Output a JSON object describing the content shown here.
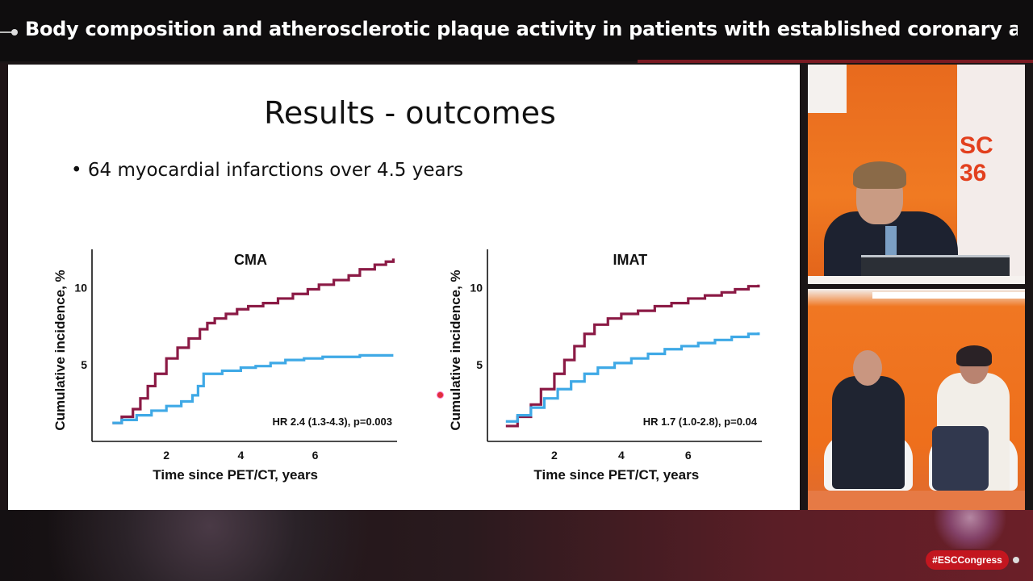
{
  "header": {
    "title": "Body composition and atherosclerotic plaque activity in patients with established coronary artery ..."
  },
  "slide": {
    "title": "Results - outcomes",
    "bullet": "• 64 myocardial infarctions over 4.5 years"
  },
  "camera_top": {
    "background_text": "SC 36"
  },
  "badge": {
    "label": "#ESCCongress"
  },
  "colors": {
    "high_group": "#8b1a45",
    "low_group": "#3fa9e6",
    "brand_red": "#c3161f",
    "stage_orange": "#f07a22"
  },
  "chart_data": [
    {
      "type": "line",
      "title": "CMA",
      "xlabel": "Time since PET/CT, years",
      "ylabel": "Cumulative incidence, %",
      "xlim": [
        0,
        8.2
      ],
      "ylim": [
        0,
        12.5
      ],
      "xticks": [
        2,
        4,
        6
      ],
      "yticks": [
        5,
        10
      ],
      "annotation": "HR 2.4 (1.3-4.3), p=0.003",
      "grid": false,
      "series": [
        {
          "color": "#8b1a45",
          "x": [
            0.55,
            0.8,
            1.1,
            1.3,
            1.5,
            1.7,
            2.0,
            2.3,
            2.6,
            2.9,
            3.1,
            3.3,
            3.6,
            3.9,
            4.2,
            4.6,
            5.0,
            5.4,
            5.8,
            6.1,
            6.5,
            6.9,
            7.2,
            7.6,
            7.9,
            8.1
          ],
          "y": [
            1.2,
            1.6,
            2.1,
            2.8,
            3.6,
            4.4,
            5.4,
            6.1,
            6.7,
            7.3,
            7.7,
            8.0,
            8.3,
            8.6,
            8.8,
            9.0,
            9.3,
            9.6,
            9.9,
            10.2,
            10.5,
            10.8,
            11.2,
            11.5,
            11.7,
            11.9
          ]
        },
        {
          "color": "#3fa9e6",
          "x": [
            0.55,
            0.8,
            1.2,
            1.6,
            2.0,
            2.4,
            2.7,
            2.85,
            3.0,
            3.5,
            4.0,
            4.4,
            4.8,
            5.2,
            5.7,
            6.2,
            6.7,
            7.2,
            7.7,
            8.1
          ],
          "y": [
            1.2,
            1.4,
            1.7,
            2.0,
            2.3,
            2.6,
            3.0,
            3.6,
            4.4,
            4.6,
            4.8,
            4.9,
            5.1,
            5.3,
            5.4,
            5.5,
            5.5,
            5.6,
            5.6,
            5.6
          ]
        }
      ]
    },
    {
      "type": "line",
      "title": "IMAT",
      "xlabel": "Time since PET/CT, years",
      "ylabel": "Cumulative incidence, %",
      "xlim": [
        0,
        8.2
      ],
      "ylim": [
        0,
        12.5
      ],
      "xticks": [
        2,
        4,
        6
      ],
      "yticks": [
        5,
        10
      ],
      "annotation": "HR 1.7 (1.0-2.8), p=0.04",
      "grid": false,
      "series": [
        {
          "color": "#8b1a45",
          "x": [
            0.55,
            0.9,
            1.3,
            1.6,
            2.0,
            2.3,
            2.6,
            2.9,
            3.2,
            3.6,
            4.0,
            4.5,
            5.0,
            5.5,
            6.0,
            6.5,
            7.0,
            7.4,
            7.8,
            8.1
          ],
          "y": [
            1.0,
            1.6,
            2.4,
            3.4,
            4.4,
            5.3,
            6.2,
            7.0,
            7.6,
            8.0,
            8.3,
            8.5,
            8.8,
            9.0,
            9.3,
            9.5,
            9.7,
            9.9,
            10.1,
            10.2
          ]
        },
        {
          "color": "#3fa9e6",
          "x": [
            0.55,
            0.9,
            1.3,
            1.7,
            2.1,
            2.5,
            2.9,
            3.3,
            3.8,
            4.3,
            4.8,
            5.3,
            5.8,
            6.3,
            6.8,
            7.3,
            7.8,
            8.1
          ],
          "y": [
            1.3,
            1.7,
            2.2,
            2.8,
            3.4,
            3.9,
            4.4,
            4.8,
            5.1,
            5.4,
            5.7,
            6.0,
            6.2,
            6.4,
            6.6,
            6.8,
            7.0,
            7.1
          ]
        }
      ]
    }
  ]
}
